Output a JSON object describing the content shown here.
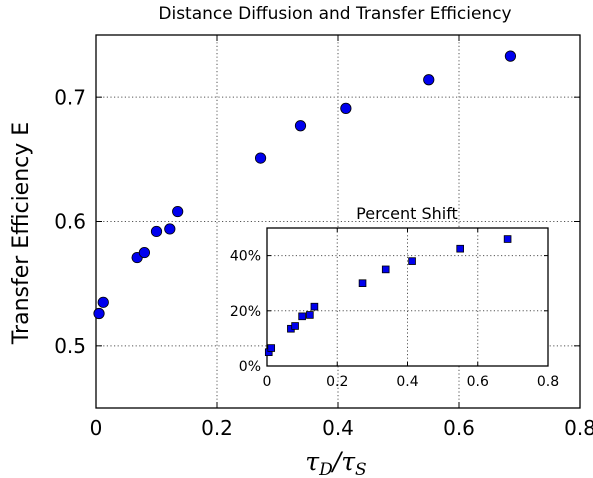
{
  "chart_data": [
    {
      "type": "scatter",
      "title": "Distance Diffusion and Transfer Efficiency",
      "xlabel": "τD/τS",
      "xlabel_parts": {
        "base1": "τ",
        "sub1": "D",
        "slash": "/",
        "base2": "τ",
        "sub2": "S"
      },
      "ylabel": "Transfer Efficiency E",
      "xlim": [
        0,
        0.8
      ],
      "ylim": [
        0.45,
        0.75
      ],
      "xticks": [
        0,
        0.2,
        0.4,
        0.6,
        0.8
      ],
      "xtick_labels": [
        "0",
        "0.2",
        "0.4",
        "0.6",
        "0.8"
      ],
      "yticks": [
        0.5,
        0.6,
        0.7
      ],
      "ytick_labels": [
        "0.5",
        "0.6",
        "0.7"
      ],
      "grid": true,
      "marker": "circle",
      "color": "#0000ee",
      "x": [
        0.005,
        0.012,
        0.068,
        0.08,
        0.1,
        0.122,
        0.135,
        0.272,
        0.338,
        0.413,
        0.55,
        0.685
      ],
      "y": [
        0.526,
        0.535,
        0.571,
        0.575,
        0.592,
        0.594,
        0.608,
        0.651,
        0.677,
        0.691,
        0.714,
        0.733
      ]
    },
    {
      "type": "scatter",
      "title": "Percent Shift",
      "xlim": [
        0,
        0.8
      ],
      "ylim": [
        0,
        50
      ],
      "xticks": [
        0,
        0.2,
        0.4,
        0.6,
        0.8
      ],
      "xtick_labels": [
        "0",
        "0.2",
        "0.4",
        "0.6",
        "0.8"
      ],
      "yticks": [
        0,
        20,
        40
      ],
      "ytick_labels": [
        "0%",
        "20%",
        "40%"
      ],
      "grid": true,
      "marker": "square",
      "color": "#0000ee",
      "x": [
        0.005,
        0.012,
        0.068,
        0.08,
        0.1,
        0.122,
        0.135,
        0.272,
        0.338,
        0.413,
        0.55,
        0.685
      ],
      "y": [
        5,
        6.5,
        13.5,
        14.5,
        18,
        18.5,
        21.5,
        30,
        35,
        38,
        42.5,
        46
      ]
    }
  ]
}
